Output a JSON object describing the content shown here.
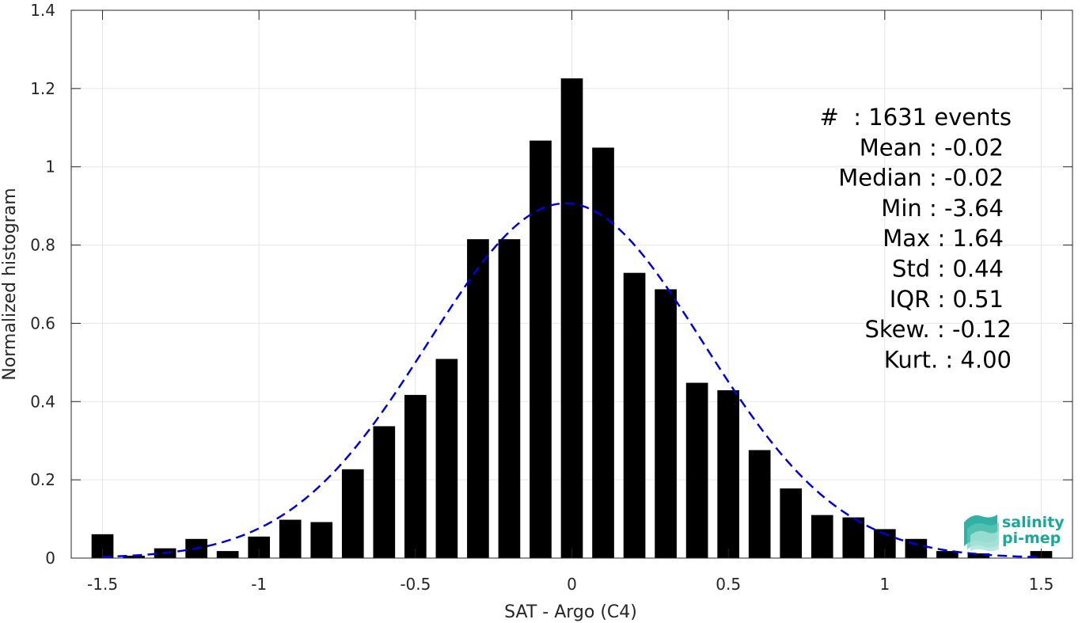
{
  "chart_data": {
    "type": "bar",
    "xlabel": "SAT - Argo (C4)",
    "ylabel": "Normalized histogram",
    "xlim": [
      -1.6,
      1.6
    ],
    "ylim": [
      0,
      1.4
    ],
    "grid": true,
    "bar_color": "#000000",
    "fit_color": "#0000e0",
    "xticks": [
      -1.5,
      -1,
      -0.5,
      0,
      0.5,
      1,
      1.5
    ],
    "xtick_labels": [
      "-1.5",
      "-1",
      "-0.5",
      "0",
      "0.5",
      "1",
      "1.5"
    ],
    "yticks": [
      0,
      0.2,
      0.4,
      0.6,
      0.8,
      1,
      1.2,
      1.4
    ],
    "ytick_labels": [
      "0",
      "0.2",
      "0.4",
      "0.6",
      "0.8",
      "1",
      "1.2",
      "1.4"
    ],
    "bar_width": 0.07,
    "bars": {
      "x": [
        -1.5,
        -1.4,
        -1.3,
        -1.2,
        -1.1,
        -1.0,
        -0.9,
        -0.8,
        -0.7,
        -0.6,
        -0.5,
        -0.4,
        -0.3,
        -0.2,
        -0.1,
        0.0,
        0.1,
        0.2,
        0.3,
        0.4,
        0.5,
        0.6,
        0.7,
        0.8,
        0.9,
        1.0,
        1.1,
        1.2,
        1.3,
        1.5
      ],
      "values": [
        0.061,
        0.006,
        0.025,
        0.049,
        0.018,
        0.055,
        0.098,
        0.092,
        0.227,
        0.337,
        0.417,
        0.509,
        0.815,
        0.815,
        1.067,
        1.226,
        1.049,
        0.729,
        0.687,
        0.448,
        0.429,
        0.276,
        0.178,
        0.11,
        0.104,
        0.074,
        0.049,
        0.018,
        0.012,
        0.018
      ]
    },
    "fit": {
      "name": "",
      "style": "dashed",
      "mean": -0.02,
      "std": 0.44,
      "x_range": [
        -1.5,
        1.5
      ]
    },
    "annotation": {
      "lines": [
        "#  : 1631 events",
        "Mean : -0.02",
        "Median : -0.02",
        "Min : -3.64",
        "Max : 1.64",
        "Std : 0.44",
        "IQR : 0.51",
        "Skew. : -0.12",
        "Kurt. : 4.00"
      ],
      "placement": "top-right"
    }
  },
  "logo": {
    "line1": "salinity",
    "line2": "pi-mep",
    "color": "#1aa89a"
  }
}
